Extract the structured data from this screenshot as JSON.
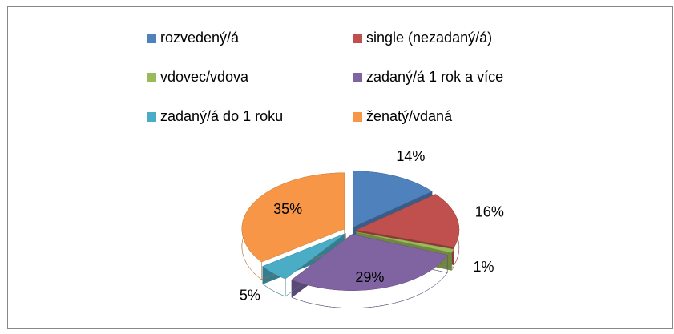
{
  "chart_data": {
    "type": "pie",
    "categories": [
      "rozvedený/á",
      "single (nezadaný/á)",
      "vdovec/vdova",
      "zadaný/á 1 rok a více",
      "zadaný/á do 1 roku",
      "ženatý/vdaná"
    ],
    "values": [
      14,
      16,
      1,
      29,
      5,
      35
    ],
    "value_labels": [
      "14%",
      "16%",
      "1%",
      "29%",
      "5%",
      "35%"
    ],
    "colors": [
      "#4f81bd",
      "#c0504d",
      "#9bbb59",
      "#8064a2",
      "#4bacc6",
      "#f79646"
    ],
    "legend": "top"
  }
}
